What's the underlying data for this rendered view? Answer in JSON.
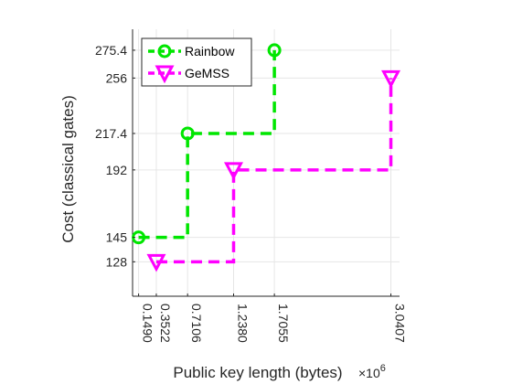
{
  "chart_data": {
    "type": "line",
    "title": "",
    "xlabel": "Public key length (bytes)",
    "x_exponent_label": "×10",
    "x_exponent_power": "6",
    "ylabel": "Cost (classical gates)",
    "xlim": [
      0.08,
      3.14
    ],
    "ylim": [
      104,
      290
    ],
    "x_ticks": [
      0.149,
      0.3522,
      0.7106,
      1.238,
      1.7055,
      3.0407
    ],
    "x_tick_labels": [
      "0.1490",
      "0.3522",
      "0.7106",
      "1.2380",
      "1.7055",
      "3.0407"
    ],
    "y_ticks": [
      128,
      145,
      192,
      217.4,
      256,
      275.4
    ],
    "y_tick_labels": [
      "128",
      "145",
      "192",
      "217.4",
      "256",
      "275.4"
    ],
    "grid": true,
    "legend_position": "top-left",
    "series": [
      {
        "name": "Rainbow",
        "color": "#00e600",
        "marker": "circle",
        "line_style": "dashed-staircase",
        "x": [
          0.149,
          0.7106,
          1.7055
        ],
        "y": [
          145,
          217.4,
          275.4
        ]
      },
      {
        "name": "GeMSS",
        "color": "#ff00ff",
        "marker": "triangle-down",
        "line_style": "dashed-staircase",
        "x": [
          0.3522,
          1.238,
          3.0407
        ],
        "y": [
          128,
          192,
          256
        ]
      }
    ]
  }
}
